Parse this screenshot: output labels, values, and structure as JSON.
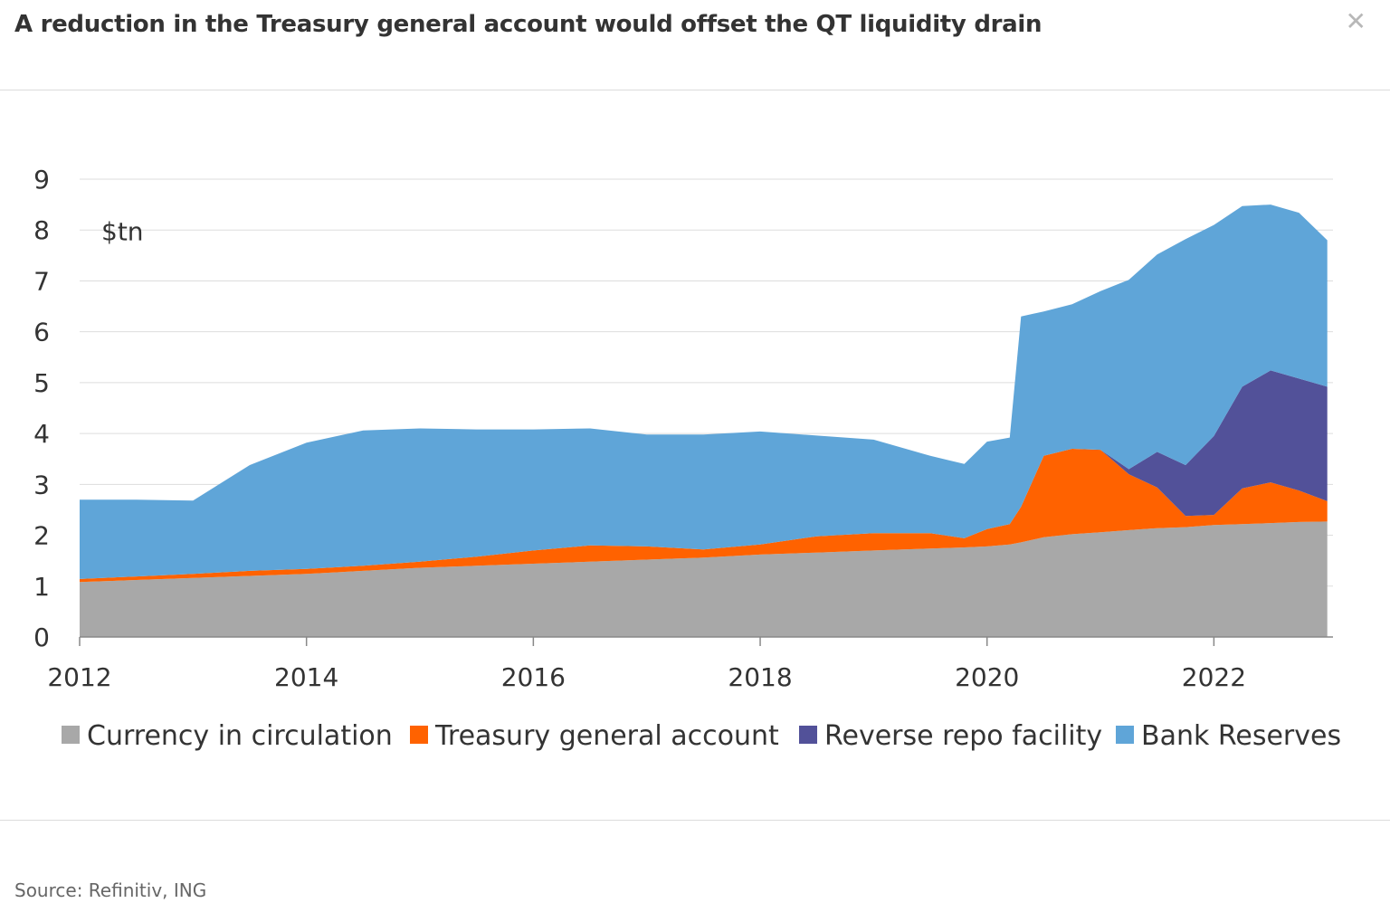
{
  "header": {
    "title": "A reduction in the Treasury general account would offset the QT liquidity drain",
    "close_icon": "close-icon"
  },
  "footer": {
    "source": "Source: Refinitiv, ING"
  },
  "chart_data": {
    "type": "area",
    "stacked": true,
    "title": "A reduction in the Treasury general account would offset the QT liquidity drain",
    "unit_label": "$tn",
    "xlabel": "",
    "ylabel": "$tn",
    "xlim": [
      2012.0,
      2023.05
    ],
    "ylim": [
      0,
      9
    ],
    "yticks": [
      0,
      1,
      2,
      3,
      4,
      5,
      6,
      7,
      8,
      9
    ],
    "xticks": [
      2012,
      2014,
      2016,
      2018,
      2020,
      2022
    ],
    "xtick_labels": [
      "2012",
      "2014",
      "2016",
      "2018",
      "2020",
      "2022"
    ],
    "grid": "horizontal",
    "legend_position": "bottom",
    "x": [
      2012.0,
      2012.5,
      2013.0,
      2013.5,
      2014.0,
      2014.5,
      2015.0,
      2015.5,
      2016.0,
      2016.5,
      2017.0,
      2017.5,
      2018.0,
      2018.5,
      2019.0,
      2019.5,
      2019.8,
      2020.0,
      2020.2,
      2020.3,
      2020.5,
      2020.75,
      2021.0,
      2021.25,
      2021.5,
      2021.75,
      2022.0,
      2022.25,
      2022.5,
      2022.75,
      2023.0
    ],
    "series": [
      {
        "name": "Currency in circulation",
        "color": "#a8a8a8",
        "values": [
          1.08,
          1.12,
          1.16,
          1.2,
          1.24,
          1.3,
          1.36,
          1.4,
          1.44,
          1.48,
          1.52,
          1.56,
          1.62,
          1.66,
          1.7,
          1.74,
          1.76,
          1.78,
          1.82,
          1.86,
          1.96,
          2.02,
          2.06,
          2.1,
          2.14,
          2.16,
          2.2,
          2.22,
          2.24,
          2.26,
          2.27
        ]
      },
      {
        "name": "Treasury general account",
        "color": "#ff6200",
        "values": [
          0.06,
          0.07,
          0.08,
          0.1,
          0.1,
          0.1,
          0.12,
          0.18,
          0.26,
          0.32,
          0.26,
          0.16,
          0.2,
          0.32,
          0.34,
          0.3,
          0.18,
          0.34,
          0.4,
          0.7,
          1.6,
          1.68,
          1.62,
          1.1,
          0.8,
          0.22,
          0.2,
          0.7,
          0.8,
          0.62,
          0.4
        ]
      },
      {
        "name": "Reverse repo facility",
        "color": "#525199",
        "values": [
          0,
          0,
          0,
          0,
          0,
          0,
          0,
          0,
          0,
          0,
          0,
          0,
          0,
          0,
          0,
          0,
          0,
          0,
          0,
          0,
          0,
          0,
          0,
          0.1,
          0.7,
          1.0,
          1.55,
          2.0,
          2.2,
          2.2,
          2.25
        ]
      },
      {
        "name": "Bank Reserves",
        "color": "#5fa5d8",
        "values": [
          1.56,
          1.51,
          1.44,
          2.08,
          2.48,
          2.66,
          2.62,
          2.5,
          2.38,
          2.3,
          2.2,
          2.26,
          2.22,
          1.98,
          1.84,
          1.52,
          1.46,
          1.72,
          1.7,
          3.74,
          2.84,
          2.84,
          3.12,
          3.72,
          3.88,
          4.44,
          4.15,
          3.55,
          3.26,
          3.26,
          2.88
        ]
      }
    ]
  }
}
